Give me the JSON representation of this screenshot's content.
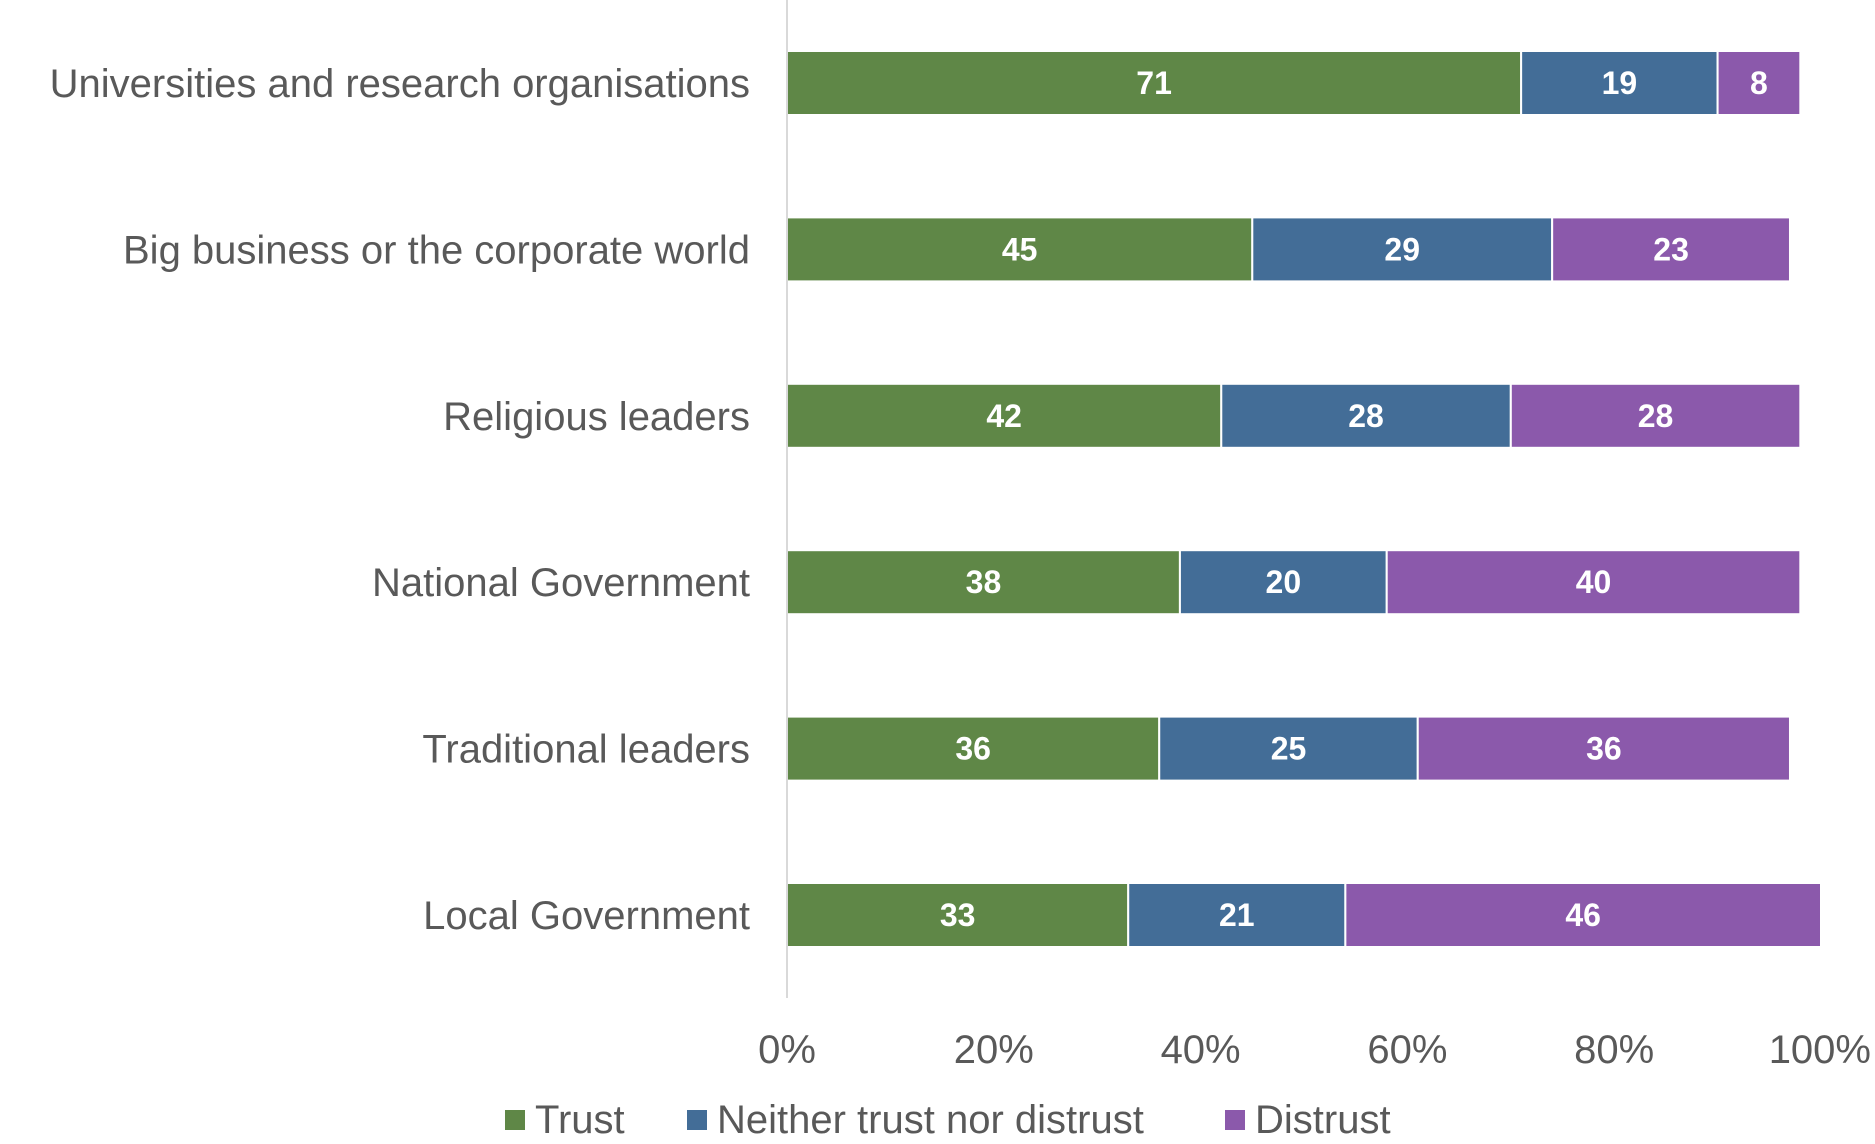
{
  "chart_data": {
    "type": "bar",
    "orientation": "horizontal",
    "stacked": true,
    "categories": [
      "Universities and research organisations",
      "Big business or the corporate world",
      "Religious leaders",
      "National Government",
      "Traditional leaders",
      "Local Government"
    ],
    "series": [
      {
        "name": "Trust",
        "color": "#5f8747",
        "values": [
          71,
          45,
          42,
          38,
          36,
          33
        ]
      },
      {
        "name": "Neither trust nor distrust",
        "color": "#436d97",
        "values": [
          19,
          29,
          28,
          20,
          25,
          21
        ]
      },
      {
        "name": "Distrust",
        "color": "#8b59ab",
        "values": [
          8,
          23,
          28,
          40,
          36,
          46
        ]
      }
    ],
    "xlim": [
      0,
      100
    ],
    "x_ticks": [
      "0%",
      "20%",
      "40%",
      "60%",
      "80%",
      "100%"
    ],
    "xlabel": "",
    "ylabel": "",
    "title": "",
    "grid": false,
    "legend": "bottom"
  }
}
